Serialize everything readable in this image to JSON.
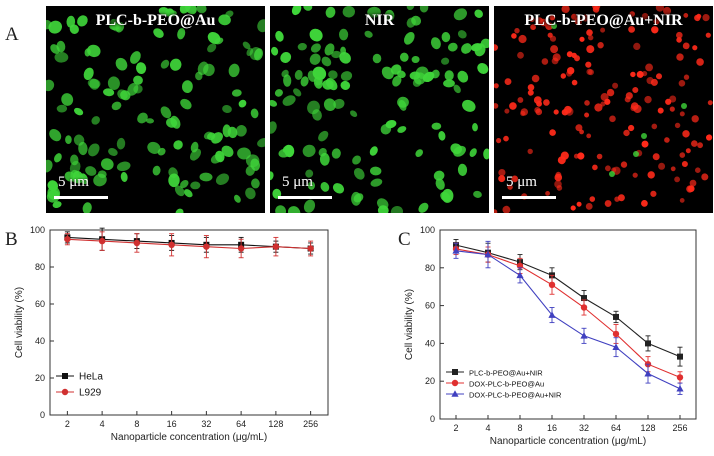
{
  "panel_letters": {
    "a": "A",
    "b": "B",
    "c": "C"
  },
  "micrographs": [
    {
      "title": "PLC-b-PEO@Au",
      "scale": "5 μm",
      "stain": "#3fd63a"
    },
    {
      "title": "NIR",
      "scale": "5 μm",
      "stain": "#3fd63a"
    },
    {
      "title": "PLC-b-PEO@Au+NIR",
      "scale": "5 μm",
      "stain": "#ff2a1a"
    }
  ],
  "chart_data": [
    {
      "type": "line",
      "panel": "B",
      "categories": [
        "2",
        "4",
        "8",
        "16",
        "32",
        "64",
        "128",
        "256"
      ],
      "xlabel": "Nanoparticle concentration (μg/mL)",
      "ylabel": "Cell viability (%)",
      "ylim": [
        0,
        100
      ],
      "yticks": [
        "0",
        "20",
        "40",
        "60",
        "80",
        "100"
      ],
      "legend_position": "bottom-left",
      "series": [
        {
          "name": "HeLa",
          "color": "#111111",
          "marker": "square",
          "values": [
            96,
            95,
            94,
            93,
            92,
            92,
            91,
            90
          ],
          "errors": [
            3,
            6,
            4,
            4,
            4,
            4,
            3,
            3
          ]
        },
        {
          "name": "L929",
          "color": "#d03030",
          "marker": "circle",
          "values": [
            95,
            94,
            93,
            92,
            91,
            90,
            91,
            90
          ],
          "errors": [
            3,
            5,
            5,
            6,
            6,
            5,
            5,
            4
          ]
        }
      ]
    },
    {
      "type": "line",
      "panel": "C",
      "categories": [
        "2",
        "4",
        "8",
        "16",
        "32",
        "64",
        "128",
        "256"
      ],
      "xlabel": "Nanoparticle concentration (μg/mL)",
      "ylabel": "Cell viability (%)",
      "ylim": [
        0,
        100
      ],
      "yticks": [
        "0",
        "20",
        "40",
        "60",
        "80",
        "100"
      ],
      "legend_position": "bottom-left",
      "series": [
        {
          "name": "PLC-b-PEO@Au+NIR",
          "color": "#222222",
          "marker": "square",
          "values": [
            92,
            88,
            83,
            76,
            64,
            54,
            40,
            33
          ],
          "errors": [
            3,
            5,
            4,
            4,
            4,
            3,
            4,
            5
          ]
        },
        {
          "name": "DOX-PLC-b-PEO@Au",
          "color": "#e03030",
          "marker": "circle",
          "values": [
            90,
            87,
            81,
            71,
            59,
            45,
            29,
            22
          ],
          "errors": [
            3,
            4,
            4,
            5,
            4,
            5,
            4,
            3
          ]
        },
        {
          "name": "DOX-PLC-b-PEO@Au+NIR",
          "color": "#4040c0",
          "marker": "triangle",
          "values": [
            89,
            87,
            76,
            55,
            44,
            38,
            24,
            16
          ],
          "errors": [
            4,
            7,
            4,
            4,
            4,
            5,
            5,
            3
          ]
        }
      ]
    }
  ]
}
